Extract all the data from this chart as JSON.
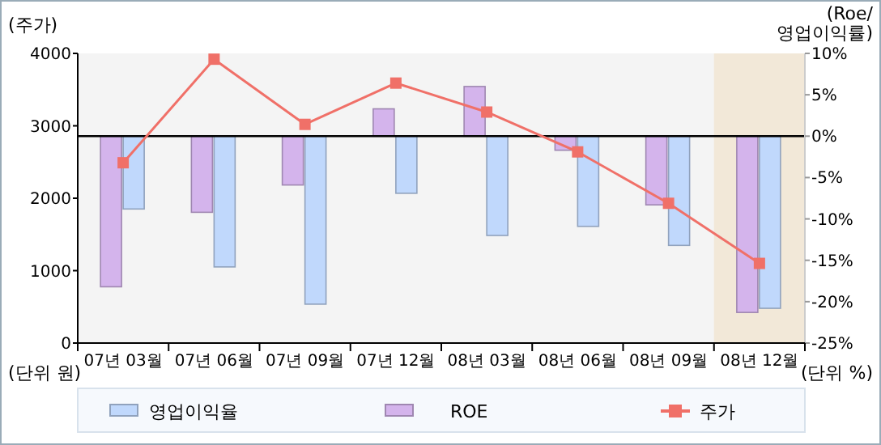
{
  "chart_data": {
    "type": "bar",
    "ylabel": "(주가)",
    "y2label": "(Roe/\n영업이익률)",
    "annotations": [
      "(단위 원)",
      "(단위 %)"
    ],
    "categories": [
      "07년 03월",
      "07년 06월",
      "07년 09월",
      "07년 12월",
      "08년 03월",
      "08년 06월",
      "08년 09월",
      "08년 12월"
    ],
    "series": [
      {
        "name": "영업이익율",
        "axis": "y2",
        "color": "#c0d8fc",
        "values": [
          -8.8,
          -15.8,
          -20.3,
          -6.9,
          -12.0,
          -10.9,
          -13.2,
          -20.8
        ]
      },
      {
        "name": "ROE",
        "axis": "y2",
        "color": "#d4b4ec",
        "values": [
          -18.2,
          -9.2,
          -5.9,
          3.3,
          6.0,
          -1.7,
          -8.3,
          -21.3
        ]
      },
      {
        "name": "주가",
        "type": "line",
        "color": "#f07068",
        "marker": "square",
        "values": [
          2490,
          3920,
          3020,
          3590,
          3190,
          2640,
          1930,
          1100
        ]
      }
    ],
    "ylim": [
      0,
      4000
    ],
    "yticks": [
      0,
      1000,
      2000,
      3000,
      4000
    ],
    "y2lim": [
      -25,
      10
    ],
    "y2ticks": [
      {
        "value": -25,
        "label": "-25%"
      },
      {
        "value": -20,
        "label": "-20%"
      },
      {
        "value": -15,
        "label": "-15%"
      },
      {
        "value": -10,
        "label": "-10%"
      },
      {
        "value": -5,
        "label": "-5%"
      },
      {
        "value": 0,
        "label": "0%"
      },
      {
        "value": 5,
        "label": "5%"
      },
      {
        "value": 10,
        "label": "10%"
      }
    ],
    "ref_lines": [
      {
        "axis": "y2",
        "value": 0,
        "color": "#000000"
      }
    ],
    "bands": [
      {
        "axis": "x",
        "from": "08년 12월",
        "to": "08년 12월",
        "color": "#f2e8d8"
      }
    ],
    "legend": "bottom"
  }
}
